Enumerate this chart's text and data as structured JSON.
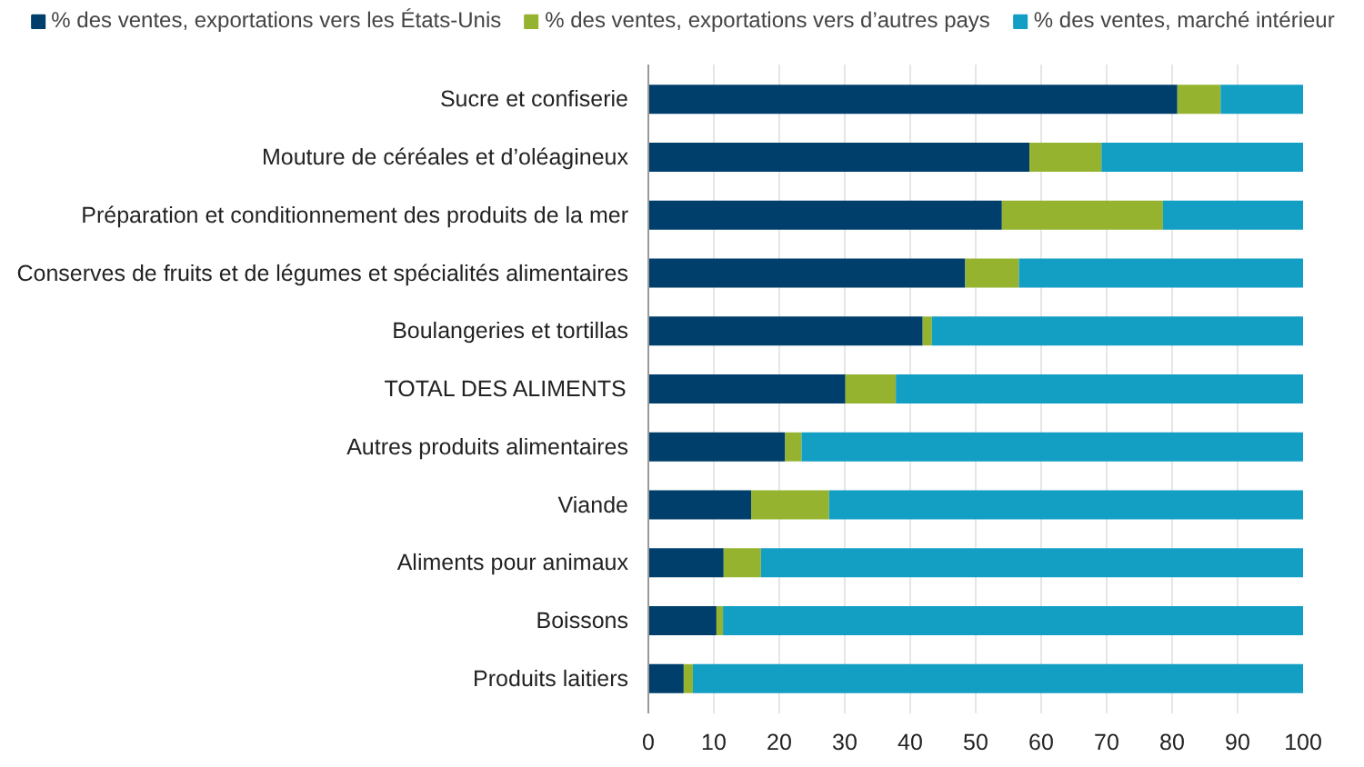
{
  "chart_data": {
    "type": "bar",
    "orientation": "horizontal",
    "stacked": true,
    "categories": [
      "Sucre et confiserie",
      "Mouture de céréales et d’oléagineux",
      "Préparation et conditionnement des produits de la mer",
      "Conserves de fruits et de légumes et spécialités alimentaires",
      "Boulangeries et tortillas",
      "TOTAL DES ALIMENTS",
      "Autres produits alimentaires",
      "Viande",
      "Aliments pour animaux",
      "Boissons",
      "Produits laitiers"
    ],
    "series": [
      {
        "name": "% des ventes, exportations vers les États-Unis",
        "color": "#003f6b",
        "values": [
          80.8,
          58.2,
          54.0,
          48.4,
          41.9,
          30.1,
          20.9,
          15.7,
          11.5,
          10.4,
          5.4
        ]
      },
      {
        "name": "% des ventes, exportations vers d’autres pays",
        "color": "#96b330",
        "values": [
          6.6,
          11.0,
          24.6,
          8.2,
          1.4,
          7.7,
          2.5,
          11.9,
          5.7,
          1.0,
          1.4
        ]
      },
      {
        "name": "% des ventes, marché intérieur",
        "color": "#139ec4",
        "values": [
          12.6,
          30.8,
          21.4,
          43.4,
          56.7,
          62.2,
          76.6,
          72.4,
          82.8,
          88.6,
          93.2
        ]
      }
    ],
    "xlim": [
      0,
      100
    ],
    "xticks": [
      0,
      10,
      20,
      30,
      40,
      50,
      60,
      70,
      80,
      90,
      100
    ],
    "grid": "x",
    "legend": "top"
  }
}
